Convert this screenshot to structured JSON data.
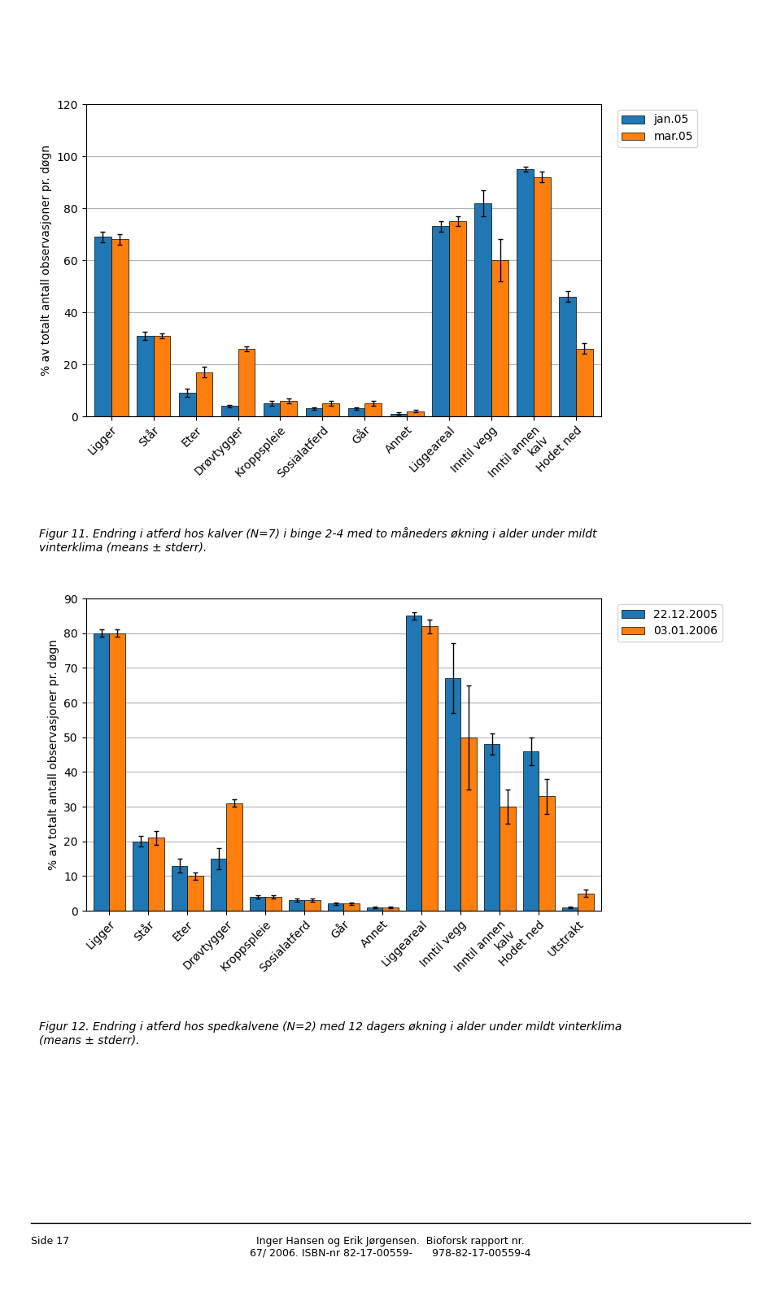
{
  "chart_data": [
    {
      "type": "bar",
      "categories": [
        "Ligger",
        "Står",
        "Eter",
        "Drøvtygger",
        "Kroppspleie",
        "Sosialatferd",
        "Går",
        "Annet",
        "Liggeareal",
        "Inntil vegg",
        "Inntil annen\nkalv",
        "Hodet ned"
      ],
      "series": [
        {
          "name": "jan.05",
          "values": [
            69,
            31,
            9,
            4,
            5,
            3,
            3,
            1,
            73,
            82,
            95,
            46
          ],
          "errors": [
            2,
            1.5,
            1.5,
            0.5,
            0.8,
            0.5,
            0.5,
            0.5,
            2,
            5,
            1,
            2
          ]
        },
        {
          "name": "mar.05",
          "values": [
            68,
            31,
            17,
            26,
            6,
            5,
            5,
            2,
            75,
            60,
            92,
            26
          ],
          "errors": [
            2,
            1,
            2,
            1,
            1,
            0.8,
            1,
            0.5,
            2,
            8,
            2,
            2
          ]
        }
      ],
      "y_label": "% av totalt antall observasjoner pr. døgn",
      "ylim": [
        0,
        120
      ],
      "yticks": [
        0,
        20,
        40,
        60,
        80,
        100,
        120
      ],
      "grid": true,
      "legend": "upper left",
      "annotations": [
        "Figur 11. Endring i atferd hos kalver (N=7) i binge 2-4 med to måneders økning i alder under mildt\nvinterklima (means ± stderr)."
      ]
    },
    {
      "type": "bar",
      "categories": [
        "Ligger",
        "Står",
        "Eter",
        "Drøvtygger",
        "Kroppspleie",
        "Sosialatferd",
        "Går",
        "Annet",
        "Liggeareal",
        "Inntil vegg",
        "Inntil annen\nkalv",
        "Hodet ned",
        "Utstrakt"
      ],
      "series": [
        {
          "name": "22.12.2005",
          "values": [
            80,
            20,
            13,
            15,
            4,
            3,
            2,
            1,
            85,
            67,
            48,
            46,
            1
          ],
          "errors": [
            1,
            1.5,
            2,
            3,
            0.5,
            0.5,
            0.4,
            0.2,
            1,
            10,
            3,
            4,
            0.2
          ]
        },
        {
          "name": "03.01.2006",
          "values": [
            80,
            21,
            10,
            31,
            4,
            3,
            2,
            1,
            82,
            50,
            30,
            33,
            5
          ],
          "errors": [
            1,
            2,
            1,
            1,
            0.5,
            0.5,
            0.4,
            0.2,
            2,
            15,
            5,
            5,
            1
          ]
        }
      ],
      "y_label": "% av totalt antall observasjoner pr. døgn",
      "ylim": [
        0,
        90
      ],
      "yticks": [
        0,
        10,
        20,
        30,
        40,
        50,
        60,
        70,
        80,
        90
      ],
      "grid": true,
      "legend": "upper left",
      "annotations": [
        "Figur 12. Endring i atferd hos spedkalvene (N=2) med 12 dagers økning i alder under mildt vinterklima\n(means ± stderr)."
      ]
    }
  ],
  "annotations": [
    "Side 17",
    "Inger Hansen og Erik Jørgensen.  Bioforsk rapport nr.\n67/ 2006. ISBN-nr 82-17-00559-      978-82-17-00559-4"
  ]
}
